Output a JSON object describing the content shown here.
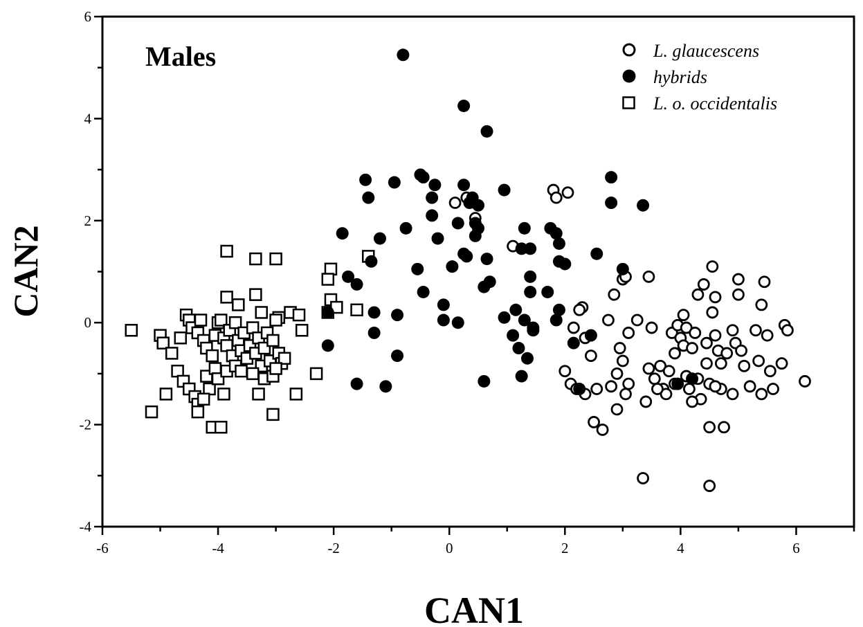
{
  "chart_data": {
    "type": "scatter",
    "title": "Males",
    "xlabel": "CAN1",
    "ylabel": "CAN2",
    "xlim": [
      -6,
      7
    ],
    "ylim": [
      -4,
      6
    ],
    "xticks": [
      -6,
      -4,
      -2,
      0,
      2,
      4,
      6
    ],
    "yticks": [
      -4,
      -2,
      0,
      2,
      4,
      6
    ],
    "grid": false,
    "legend_position": "top-right",
    "series": [
      {
        "name": "L. glaucescens",
        "marker": "open-circle",
        "points": [
          [
            0.1,
            2.35
          ],
          [
            0.3,
            2.45
          ],
          [
            0.45,
            2.05
          ],
          [
            1.1,
            1.5
          ],
          [
            1.8,
            2.6
          ],
          [
            1.85,
            2.45
          ],
          [
            2.05,
            2.55
          ],
          [
            3.0,
            0.85
          ],
          [
            3.05,
            0.9
          ],
          [
            2.85,
            0.55
          ],
          [
            3.45,
            0.9
          ],
          [
            2.3,
            0.3
          ],
          [
            2.25,
            0.25
          ],
          [
            2.15,
            -0.1
          ],
          [
            2.35,
            -0.3
          ],
          [
            2.45,
            -0.65
          ],
          [
            2.0,
            -0.95
          ],
          [
            2.1,
            -1.2
          ],
          [
            2.2,
            -1.3
          ],
          [
            2.35,
            -1.4
          ],
          [
            2.55,
            -1.3
          ],
          [
            2.5,
            -1.95
          ],
          [
            2.65,
            -2.1
          ],
          [
            2.8,
            -1.25
          ],
          [
            2.9,
            -1.0
          ],
          [
            2.9,
            -1.7
          ],
          [
            2.95,
            -0.5
          ],
          [
            3.0,
            -0.75
          ],
          [
            3.05,
            -1.4
          ],
          [
            3.1,
            -1.2
          ],
          [
            2.75,
            0.05
          ],
          [
            3.1,
            -0.2
          ],
          [
            3.25,
            0.05
          ],
          [
            3.45,
            -0.9
          ],
          [
            3.4,
            -1.55
          ],
          [
            3.55,
            -1.1
          ],
          [
            3.5,
            -0.1
          ],
          [
            3.65,
            -0.85
          ],
          [
            3.7,
            -1.3
          ],
          [
            3.75,
            -1.4
          ],
          [
            3.8,
            -0.95
          ],
          [
            3.85,
            -0.2
          ],
          [
            3.9,
            -0.6
          ],
          [
            3.95,
            -0.05
          ],
          [
            4.0,
            -0.3
          ],
          [
            4.05,
            0.15
          ],
          [
            4.05,
            -0.45
          ],
          [
            4.1,
            -0.1
          ],
          [
            4.1,
            -1.05
          ],
          [
            4.15,
            -1.3
          ],
          [
            4.2,
            -0.5
          ],
          [
            4.25,
            -0.2
          ],
          [
            4.3,
            0.55
          ],
          [
            4.3,
            -1.1
          ],
          [
            4.35,
            -1.5
          ],
          [
            4.4,
            0.75
          ],
          [
            4.45,
            -0.4
          ],
          [
            4.45,
            -0.8
          ],
          [
            4.5,
            -1.2
          ],
          [
            4.5,
            -2.05
          ],
          [
            4.55,
            0.2
          ],
          [
            4.55,
            1.1
          ],
          [
            4.6,
            0.5
          ],
          [
            4.6,
            -0.25
          ],
          [
            4.65,
            -0.55
          ],
          [
            4.7,
            -0.8
          ],
          [
            4.7,
            -1.3
          ],
          [
            4.75,
            -2.05
          ],
          [
            4.8,
            -0.6
          ],
          [
            4.9,
            -0.15
          ],
          [
            4.9,
            -1.4
          ],
          [
            4.95,
            -0.4
          ],
          [
            5.0,
            0.85
          ],
          [
            5.0,
            0.55
          ],
          [
            5.05,
            -0.55
          ],
          [
            5.1,
            -0.85
          ],
          [
            5.2,
            -1.25
          ],
          [
            5.3,
            -0.15
          ],
          [
            5.35,
            -0.75
          ],
          [
            5.4,
            0.35
          ],
          [
            5.4,
            -1.4
          ],
          [
            5.45,
            0.8
          ],
          [
            5.5,
            -0.25
          ],
          [
            5.55,
            -0.95
          ],
          [
            5.6,
            -1.3
          ],
          [
            5.75,
            -0.8
          ],
          [
            5.8,
            -0.05
          ],
          [
            5.85,
            -0.15
          ],
          [
            6.15,
            -1.15
          ],
          [
            3.35,
            -3.05
          ],
          [
            4.5,
            -3.2
          ],
          [
            3.9,
            -1.2
          ],
          [
            4.2,
            -1.55
          ],
          [
            4.6,
            -1.25
          ],
          [
            3.6,
            -1.3
          ]
        ]
      },
      {
        "name": "hybrids",
        "marker": "filled-circle",
        "points": [
          [
            -0.8,
            5.25
          ],
          [
            0.25,
            4.25
          ],
          [
            0.65,
            3.75
          ],
          [
            -1.45,
            2.8
          ],
          [
            -1.4,
            2.45
          ],
          [
            -0.95,
            2.75
          ],
          [
            -0.5,
            2.9
          ],
          [
            -0.45,
            2.85
          ],
          [
            -0.25,
            2.7
          ],
          [
            -0.3,
            2.45
          ],
          [
            -0.3,
            2.1
          ],
          [
            0.25,
            2.7
          ],
          [
            0.35,
            2.35
          ],
          [
            0.4,
            2.45
          ],
          [
            0.5,
            2.3
          ],
          [
            0.15,
            1.95
          ],
          [
            0.45,
            1.95
          ],
          [
            0.5,
            1.85
          ],
          [
            0.45,
            1.7
          ],
          [
            -0.75,
            1.85
          ],
          [
            -1.2,
            1.65
          ],
          [
            -1.85,
            1.75
          ],
          [
            -0.2,
            1.65
          ],
          [
            0.25,
            1.35
          ],
          [
            0.3,
            1.3
          ],
          [
            0.65,
            1.25
          ],
          [
            0.95,
            2.6
          ],
          [
            1.3,
            1.85
          ],
          [
            1.25,
            1.45
          ],
          [
            1.4,
            1.45
          ],
          [
            1.75,
            1.85
          ],
          [
            1.85,
            1.75
          ],
          [
            1.9,
            1.55
          ],
          [
            1.9,
            1.2
          ],
          [
            2.0,
            1.15
          ],
          [
            2.55,
            1.35
          ],
          [
            2.8,
            2.85
          ],
          [
            2.8,
            2.35
          ],
          [
            3.35,
            2.3
          ],
          [
            3.0,
            1.05
          ],
          [
            -1.35,
            1.2
          ],
          [
            -1.75,
            0.9
          ],
          [
            -1.6,
            0.75
          ],
          [
            -0.55,
            1.05
          ],
          [
            -0.45,
            0.6
          ],
          [
            0.05,
            1.1
          ],
          [
            0.7,
            0.8
          ],
          [
            0.6,
            0.7
          ],
          [
            0.95,
            0.1
          ],
          [
            1.1,
            -0.25
          ],
          [
            1.15,
            0.25
          ],
          [
            1.3,
            0.05
          ],
          [
            1.4,
            0.9
          ],
          [
            1.4,
            0.6
          ],
          [
            1.45,
            -0.1
          ],
          [
            1.45,
            -0.15
          ],
          [
            1.7,
            0.6
          ],
          [
            1.85,
            0.05
          ],
          [
            1.9,
            0.25
          ],
          [
            1.2,
            -0.5
          ],
          [
            1.35,
            -0.7
          ],
          [
            1.25,
            -1.05
          ],
          [
            -0.1,
            0.35
          ],
          [
            -0.1,
            0.05
          ],
          [
            0.15,
            0.0
          ],
          [
            -0.9,
            0.15
          ],
          [
            -1.3,
            0.2
          ],
          [
            -1.3,
            -0.2
          ],
          [
            -2.1,
            0.2
          ],
          [
            -2.1,
            -0.45
          ],
          [
            -1.6,
            -1.2
          ],
          [
            -1.1,
            -1.25
          ],
          [
            -0.9,
            -0.65
          ],
          [
            0.6,
            -1.15
          ],
          [
            2.15,
            -0.4
          ],
          [
            2.25,
            -1.3
          ],
          [
            2.45,
            -0.25
          ],
          [
            3.95,
            -1.2
          ],
          [
            4.2,
            -1.1
          ]
        ]
      },
      {
        "name": "L. o. occidentalis",
        "marker": "open-square",
        "points": [
          [
            -3.85,
            1.4
          ],
          [
            -3.35,
            1.25
          ],
          [
            -3.0,
            1.25
          ],
          [
            -1.4,
            1.3
          ],
          [
            -2.05,
            1.05
          ],
          [
            -2.1,
            0.85
          ],
          [
            -3.85,
            0.5
          ],
          [
            -3.35,
            0.55
          ],
          [
            -3.65,
            0.35
          ],
          [
            -3.25,
            0.2
          ],
          [
            -2.75,
            0.2
          ],
          [
            -2.6,
            0.15
          ],
          [
            -2.95,
            0.1
          ],
          [
            -2.05,
            0.45
          ],
          [
            -2.1,
            0.2
          ],
          [
            -1.95,
            0.3
          ],
          [
            -1.6,
            0.25
          ],
          [
            -5.5,
            -0.15
          ],
          [
            -5.0,
            -0.25
          ],
          [
            -4.95,
            -0.4
          ],
          [
            -4.8,
            -0.6
          ],
          [
            -4.65,
            -0.3
          ],
          [
            -4.55,
            0.15
          ],
          [
            -4.5,
            0.05
          ],
          [
            -4.45,
            -0.1
          ],
          [
            -4.35,
            -0.2
          ],
          [
            -4.3,
            0.05
          ],
          [
            -4.25,
            -0.35
          ],
          [
            -4.2,
            -0.5
          ],
          [
            -4.1,
            -0.65
          ],
          [
            -4.05,
            -0.25
          ],
          [
            -4.0,
            0.0
          ],
          [
            -3.95,
            0.05
          ],
          [
            -3.9,
            -0.3
          ],
          [
            -3.85,
            -0.45
          ],
          [
            -3.8,
            -0.15
          ],
          [
            -3.75,
            -0.65
          ],
          [
            -3.7,
            0.0
          ],
          [
            -3.65,
            -0.35
          ],
          [
            -3.6,
            -0.55
          ],
          [
            -3.55,
            -0.2
          ],
          [
            -3.5,
            -0.7
          ],
          [
            -3.45,
            -0.45
          ],
          [
            -3.4,
            -0.1
          ],
          [
            -3.35,
            -0.6
          ],
          [
            -3.3,
            -0.3
          ],
          [
            -3.25,
            -0.85
          ],
          [
            -3.2,
            -0.5
          ],
          [
            -3.15,
            -0.2
          ],
          [
            -3.1,
            -0.75
          ],
          [
            -3.05,
            -0.35
          ],
          [
            -3.0,
            0.05
          ],
          [
            -2.95,
            -0.6
          ],
          [
            -2.9,
            -0.8
          ],
          [
            -2.85,
            -0.7
          ],
          [
            -2.55,
            -0.15
          ],
          [
            -4.7,
            -0.95
          ],
          [
            -4.6,
            -1.15
          ],
          [
            -4.5,
            -1.3
          ],
          [
            -4.4,
            -1.45
          ],
          [
            -4.35,
            -1.6
          ],
          [
            -4.2,
            -1.05
          ],
          [
            -4.15,
            -1.3
          ],
          [
            -4.05,
            -0.9
          ],
          [
            -4.0,
            -1.1
          ],
          [
            -3.9,
            -1.4
          ],
          [
            -3.85,
            -0.95
          ],
          [
            -3.7,
            -0.85
          ],
          [
            -3.6,
            -0.95
          ],
          [
            -3.4,
            -1.0
          ],
          [
            -3.3,
            -1.4
          ],
          [
            -3.2,
            -1.1
          ],
          [
            -3.05,
            -1.05
          ],
          [
            -3.0,
            -0.9
          ],
          [
            -2.65,
            -1.4
          ],
          [
            -2.3,
            -1.0
          ],
          [
            -4.9,
            -1.4
          ],
          [
            -5.15,
            -1.75
          ],
          [
            -4.35,
            -1.75
          ],
          [
            -4.1,
            -2.05
          ],
          [
            -3.95,
            -2.05
          ],
          [
            -3.05,
            -1.8
          ],
          [
            -4.25,
            -1.5
          ]
        ]
      }
    ]
  }
}
